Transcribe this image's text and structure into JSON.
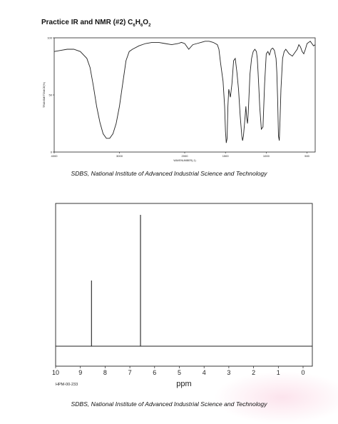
{
  "header": {
    "title_prefix": "Practice IR and NMR (#2) C",
    "formula_c": "6",
    "formula_h_letter": "H",
    "formula_h": "6",
    "formula_o_letter": "O",
    "formula_o": "2"
  },
  "credits": {
    "ir": "SDBS, National Institute of Advanced Industrial Science and Technology",
    "nmr": "SDBS, National Institute of Advanced Industrial Science and Technology"
  },
  "chart_data": [
    {
      "type": "line",
      "title": "",
      "xlabel": "WAVENUMBER(-1)",
      "ylabel": "TRANSMITTANCE(%)",
      "xlim": [
        4000,
        400
      ],
      "ylim": [
        0,
        100
      ],
      "x_ticks": [
        4000,
        3000,
        2000,
        1500,
        1000,
        500
      ],
      "x_tick_labels": [
        "4000",
        "3000",
        "2000",
        "1500",
        "1000",
        "500"
      ],
      "y_ticks": [
        0,
        50,
        100
      ],
      "y_tick_labels": [
        "0",
        "50",
        "100"
      ],
      "series": [
        {
          "x": [
            4000,
            3900,
            3800,
            3700,
            3600,
            3500,
            3450,
            3400,
            3350,
            3300,
            3250,
            3200,
            3150,
            3100,
            3050,
            3000,
            2950,
            2900,
            2850,
            2800,
            2700,
            2600,
            2500,
            2400,
            2300,
            2200,
            2100,
            2050,
            2000,
            1950,
            1900,
            1850,
            1800,
            1750,
            1700,
            1650,
            1600,
            1580,
            1560,
            1530,
            1510,
            1500,
            1490,
            1480,
            1470,
            1460,
            1440,
            1420,
            1400,
            1380,
            1360,
            1340,
            1320,
            1300,
            1290,
            1280,
            1270,
            1260,
            1250,
            1240,
            1230,
            1220,
            1210,
            1200,
            1180,
            1160,
            1140,
            1120,
            1110,
            1100,
            1090,
            1080,
            1060,
            1040,
            1020,
            1000,
            980,
            960,
            940,
            920,
            900,
            880,
            870,
            860,
            850,
            840,
            830,
            820,
            800,
            780,
            760,
            740,
            720,
            700,
            680,
            660,
            640,
            620,
            600,
            580,
            560,
            540,
            520,
            500,
            480,
            460,
            440,
            420,
            400
          ],
          "y": [
            88,
            89,
            90,
            90,
            88,
            82,
            74,
            58,
            40,
            26,
            16,
            12,
            12,
            16,
            25,
            40,
            60,
            80,
            88,
            90,
            93,
            95,
            96,
            96,
            95,
            94,
            95,
            96,
            95,
            90,
            94,
            95,
            96,
            97,
            97,
            96,
            94,
            90,
            78,
            62,
            40,
            18,
            8,
            12,
            40,
            55,
            48,
            60,
            80,
            82,
            70,
            55,
            32,
            14,
            10,
            14,
            22,
            30,
            40,
            30,
            25,
            35,
            52,
            68,
            82,
            88,
            90,
            88,
            82,
            70,
            55,
            40,
            20,
            22,
            60,
            86,
            88,
            85,
            90,
            91,
            89,
            82,
            70,
            45,
            14,
            10,
            30,
            55,
            82,
            88,
            90,
            88,
            86,
            85,
            84,
            86,
            88,
            90,
            94,
            92,
            88,
            86,
            90,
            95,
            96,
            97,
            95,
            93,
            94
          ]
        }
      ],
      "grid": false,
      "legend": "none"
    },
    {
      "type": "line",
      "title": "",
      "xlabel": "ppm",
      "ylabel": "",
      "xlim": [
        10,
        0
      ],
      "x_ticks": [
        10,
        9,
        8,
        7,
        6,
        5,
        4,
        3,
        2,
        1,
        0
      ],
      "x_tick_labels": [
        "10",
        "9",
        "8",
        "7",
        "6",
        "5",
        "4",
        "3",
        "2",
        "1",
        "0"
      ],
      "peaks": [
        {
          "ppm": 8.55,
          "relative_height": 0.5
        },
        {
          "ppm": 6.57,
          "relative_height": 1.0
        }
      ],
      "annotation": "HPM-00-233",
      "grid": false,
      "legend": "none"
    }
  ]
}
